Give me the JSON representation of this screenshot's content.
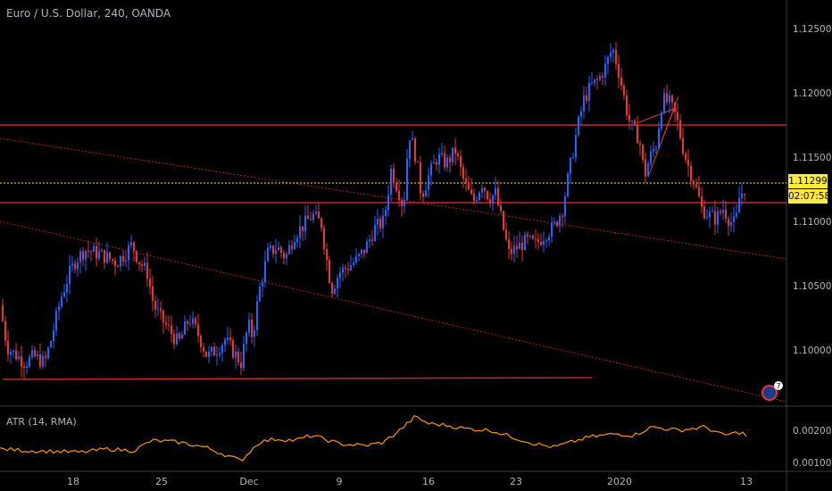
{
  "chart_title": "Euro / U.S. Dollar, 240, OANDA",
  "atr_title": "ATR (14, RMA)",
  "price_label": "1.11299",
  "countdown_label": "02:07:58",
  "event_badge": "7",
  "colors": {
    "up": "#2962ff",
    "down": "#e53935",
    "hline": "#c62828",
    "trend": "#b71c1c",
    "price_line": "#ffeb3b",
    "atr": "#ff9800",
    "axis_text": "#b2b5be",
    "separator": "#363a45"
  },
  "chart_data": [
    {
      "type": "candlestick",
      "title": "Euro / U.S. Dollar, 240, OANDA",
      "x_ticks": [
        "18",
        "25",
        "Dec",
        "9",
        "16",
        "23",
        "2020",
        "13"
      ],
      "y_ticks": [
        "1.12500",
        "1.12000",
        "1.11500",
        "1.11000",
        "1.10500",
        "1.10000"
      ],
      "ylim": [
        1.0965,
        1.126
      ],
      "last_price": 1.11299,
      "close_path": [
        [
          0,
          1.1035
        ],
        [
          8,
          1.1002
        ],
        [
          18,
          1.0996
        ],
        [
          28,
          1.099
        ],
        [
          38,
          1.0995
        ],
        [
          50,
          1.099
        ],
        [
          58,
          1.101
        ],
        [
          68,
          1.104
        ],
        [
          78,
          1.106
        ],
        [
          85,
          1.107
        ],
        [
          95,
          1.1078
        ],
        [
          110,
          1.1075
        ],
        [
          120,
          1.1072
        ],
        [
          130,
          1.1068
        ],
        [
          140,
          1.1075
        ],
        [
          148,
          1.1082
        ],
        [
          155,
          1.107
        ],
        [
          165,
          1.106
        ],
        [
          172,
          1.1035
        ],
        [
          180,
          1.1025
        ],
        [
          190,
          1.1015
        ],
        [
          200,
          1.1005
        ],
        [
          212,
          1.1025
        ],
        [
          222,
          1.1012
        ],
        [
          232,
          1.0995
        ],
        [
          242,
          1.1
        ],
        [
          252,
          1.1008
        ],
        [
          262,
          1.0998
        ],
        [
          270,
          1.099
        ],
        [
          278,
          1.102
        ],
        [
          283,
          1.101
        ],
        [
          290,
          1.1045
        ],
        [
          300,
          1.1075
        ],
        [
          310,
          1.108
        ],
        [
          320,
          1.1072
        ],
        [
          330,
          1.109
        ],
        [
          340,
          1.1097
        ],
        [
          350,
          1.1105
        ],
        [
          360,
          1.1098
        ],
        [
          368,
          1.106
        ],
        [
          372,
          1.1048
        ],
        [
          380,
          1.106
        ],
        [
          390,
          1.1065
        ],
        [
          400,
          1.107
        ],
        [
          410,
          1.108
        ],
        [
          420,
          1.1095
        ],
        [
          430,
          1.11
        ],
        [
          438,
          1.114
        ],
        [
          446,
          1.1125
        ],
        [
          452,
          1.111
        ],
        [
          458,
          1.117
        ],
        [
          466,
          1.115
        ],
        [
          472,
          1.112
        ],
        [
          480,
          1.1135
        ],
        [
          490,
          1.115
        ],
        [
          500,
          1.1145
        ],
        [
          510,
          1.1155
        ],
        [
          520,
          1.113
        ],
        [
          530,
          1.1115
        ],
        [
          540,
          1.113
        ],
        [
          548,
          1.1118
        ],
        [
          555,
          1.1122
        ],
        [
          562,
          1.11
        ],
        [
          570,
          1.1075
        ],
        [
          580,
          1.108
        ],
        [
          590,
          1.1085
        ],
        [
          600,
          1.1082
        ],
        [
          610,
          1.109
        ],
        [
          620,
          1.1095
        ],
        [
          630,
          1.111
        ],
        [
          638,
          1.114
        ],
        [
          646,
          1.117
        ],
        [
          654,
          1.1195
        ],
        [
          662,
          1.1205
        ],
        [
          670,
          1.121
        ],
        [
          678,
          1.122
        ],
        [
          686,
          1.1235
        ],
        [
          692,
          1.122
        ],
        [
          698,
          1.12
        ],
        [
          704,
          1.118
        ],
        [
          710,
          1.117
        ],
        [
          716,
          1.1165
        ],
        [
          722,
          1.1135
        ],
        [
          728,
          1.115
        ],
        [
          735,
          1.116
        ],
        [
          742,
          1.1195
        ],
        [
          750,
          1.1192
        ],
        [
          758,
          1.118
        ],
        [
          764,
          1.116
        ],
        [
          770,
          1.1145
        ],
        [
          778,
          1.113
        ],
        [
          786,
          1.111
        ],
        [
          794,
          1.1105
        ],
        [
          802,
          1.1102
        ],
        [
          810,
          1.111
        ],
        [
          818,
          1.11
        ],
        [
          824,
          1.1098
        ],
        [
          828,
          1.1118
        ],
        [
          834,
          1.1126
        ],
        [
          836,
          1.113
        ]
      ]
    },
    {
      "type": "line",
      "title": "ATR (14, RMA)",
      "y_ticks": [
        "0.00200",
        "0.00100"
      ],
      "ylim": [
        0.0009,
        0.0028
      ],
      "values_path": [
        [
          0,
          0.00145
        ],
        [
          30,
          0.0014
        ],
        [
          60,
          0.00138
        ],
        [
          90,
          0.00135
        ],
        [
          120,
          0.00145
        ],
        [
          150,
          0.0014
        ],
        [
          170,
          0.0017
        ],
        [
          200,
          0.00165
        ],
        [
          230,
          0.0015
        ],
        [
          260,
          0.0012
        ],
        [
          270,
          0.0011
        ],
        [
          290,
          0.00165
        ],
        [
          310,
          0.00175
        ],
        [
          330,
          0.0017
        ],
        [
          350,
          0.00185
        ],
        [
          380,
          0.0016
        ],
        [
          410,
          0.00155
        ],
        [
          430,
          0.00165
        ],
        [
          450,
          0.00205
        ],
        [
          465,
          0.0024
        ],
        [
          480,
          0.0022
        ],
        [
          500,
          0.00215
        ],
        [
          520,
          0.00205
        ],
        [
          550,
          0.002
        ],
        [
          580,
          0.00175
        ],
        [
          600,
          0.0016
        ],
        [
          620,
          0.0015
        ],
        [
          640,
          0.00165
        ],
        [
          660,
          0.0018
        ],
        [
          690,
          0.0019
        ],
        [
          710,
          0.00185
        ],
        [
          730,
          0.0021
        ],
        [
          760,
          0.002
        ],
        [
          790,
          0.0021
        ],
        [
          810,
          0.00185
        ],
        [
          830,
          0.00195
        ],
        [
          838,
          0.0018
        ]
      ]
    }
  ]
}
